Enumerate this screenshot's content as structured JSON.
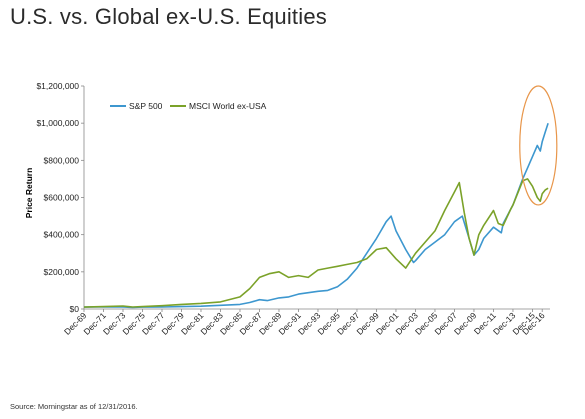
{
  "page": {
    "title": "U.S. vs. Global ex-U.S. Equities",
    "source": "Source: Morningstar as of 12/31/2016."
  },
  "chart_data": {
    "type": "line",
    "title": "U.S. vs. Global ex-U.S. Equities",
    "xlabel": "",
    "ylabel": "Price Return",
    "ylim": [
      0,
      1200000
    ],
    "yticks": [
      0,
      200000,
      400000,
      600000,
      800000,
      1000000,
      1200000
    ],
    "ytick_labels": [
      "$0",
      "$200,000",
      "$400,000",
      "$600,000",
      "$800,000",
      "$1,000,000",
      "$1,200,000"
    ],
    "xlim": [
      1969,
      2016
    ],
    "xticks": [
      1969,
      1971,
      1973,
      1975,
      1977,
      1979,
      1981,
      1983,
      1985,
      1987,
      1989,
      1991,
      1993,
      1995,
      1997,
      1999,
      2001,
      2003,
      2005,
      2007,
      2009,
      2011,
      2013,
      2015,
      2016
    ],
    "xtick_labels": [
      "Dec-69",
      "Dec-71",
      "Dec-73",
      "Dec-75",
      "Dec-77",
      "Dec-79",
      "Dec-81",
      "Dec-83",
      "Dec-85",
      "Dec-87",
      "Dec-89",
      "Dec-91",
      "Dec-93",
      "Dec-95",
      "Dec-97",
      "Dec-99",
      "Dec-01",
      "Dec-03",
      "Dec-05",
      "Dec-07",
      "Dec-09",
      "Dec-11",
      "Dec-13",
      "Dec-15",
      "Dec-16"
    ],
    "grid": false,
    "legend_position": "top-left",
    "series": [
      {
        "name": "S&P 500",
        "color": "#3d97cf",
        "points": [
          [
            1969,
            10000
          ],
          [
            1971,
            12000
          ],
          [
            1973,
            11000
          ],
          [
            1974,
            8000
          ],
          [
            1975,
            10000
          ],
          [
            1977,
            11000
          ],
          [
            1979,
            13000
          ],
          [
            1981,
            15000
          ],
          [
            1983,
            20000
          ],
          [
            1985,
            25000
          ],
          [
            1986,
            35000
          ],
          [
            1987,
            50000
          ],
          [
            1987.8,
            45000
          ],
          [
            1989,
            60000
          ],
          [
            1990,
            65000
          ],
          [
            1991,
            80000
          ],
          [
            1993,
            95000
          ],
          [
            1994,
            100000
          ],
          [
            1995,
            120000
          ],
          [
            1996,
            160000
          ],
          [
            1997,
            220000
          ],
          [
            1998,
            300000
          ],
          [
            1999,
            380000
          ],
          [
            2000,
            470000
          ],
          [
            2000.5,
            500000
          ],
          [
            2001,
            420000
          ],
          [
            2002,
            320000
          ],
          [
            2002.8,
            250000
          ],
          [
            2003,
            260000
          ],
          [
            2004,
            320000
          ],
          [
            2005,
            360000
          ],
          [
            2006,
            400000
          ],
          [
            2007,
            470000
          ],
          [
            2007.8,
            500000
          ],
          [
            2008.5,
            380000
          ],
          [
            2009,
            290000
          ],
          [
            2009.5,
            320000
          ],
          [
            2010,
            380000
          ],
          [
            2011,
            440000
          ],
          [
            2011.8,
            410000
          ],
          [
            2012,
            460000
          ],
          [
            2013,
            560000
          ],
          [
            2014,
            700000
          ],
          [
            2014.5,
            760000
          ],
          [
            2015,
            820000
          ],
          [
            2015.5,
            880000
          ],
          [
            2015.8,
            850000
          ],
          [
            2016,
            900000
          ],
          [
            2016.3,
            950000
          ],
          [
            2016.6,
            1000000
          ]
        ]
      },
      {
        "name": "MSCI World ex-USA",
        "color": "#7ba229",
        "points": [
          [
            1969,
            10000
          ],
          [
            1971,
            13000
          ],
          [
            1973,
            16000
          ],
          [
            1974,
            11000
          ],
          [
            1975,
            13000
          ],
          [
            1977,
            18000
          ],
          [
            1979,
            25000
          ],
          [
            1981,
            30000
          ],
          [
            1983,
            38000
          ],
          [
            1985,
            65000
          ],
          [
            1986,
            110000
          ],
          [
            1987,
            170000
          ],
          [
            1988,
            190000
          ],
          [
            1989,
            200000
          ],
          [
            1990,
            170000
          ],
          [
            1991,
            180000
          ],
          [
            1992,
            170000
          ],
          [
            1993,
            210000
          ],
          [
            1994,
            220000
          ],
          [
            1995,
            230000
          ],
          [
            1996,
            240000
          ],
          [
            1997,
            250000
          ],
          [
            1998,
            270000
          ],
          [
            1999,
            320000
          ],
          [
            2000,
            330000
          ],
          [
            2001,
            270000
          ],
          [
            2002,
            220000
          ],
          [
            2003,
            300000
          ],
          [
            2004,
            360000
          ],
          [
            2005,
            420000
          ],
          [
            2006,
            530000
          ],
          [
            2007,
            630000
          ],
          [
            2007.5,
            680000
          ],
          [
            2008,
            520000
          ],
          [
            2008.5,
            380000
          ],
          [
            2009,
            290000
          ],
          [
            2009.5,
            400000
          ],
          [
            2010,
            450000
          ],
          [
            2011,
            530000
          ],
          [
            2011.5,
            460000
          ],
          [
            2012,
            450000
          ],
          [
            2012.8,
            540000
          ],
          [
            2013,
            560000
          ],
          [
            2014,
            690000
          ],
          [
            2014.5,
            700000
          ],
          [
            2015,
            660000
          ],
          [
            2015.5,
            600000
          ],
          [
            2015.8,
            580000
          ],
          [
            2016,
            620000
          ],
          [
            2016.3,
            640000
          ],
          [
            2016.6,
            650000
          ]
        ]
      }
    ],
    "annotation": {
      "type": "ellipse",
      "color": "#e8964a",
      "x_range": [
        2013.7,
        2017.5
      ],
      "y_range": [
        560000,
        1200000
      ]
    }
  }
}
